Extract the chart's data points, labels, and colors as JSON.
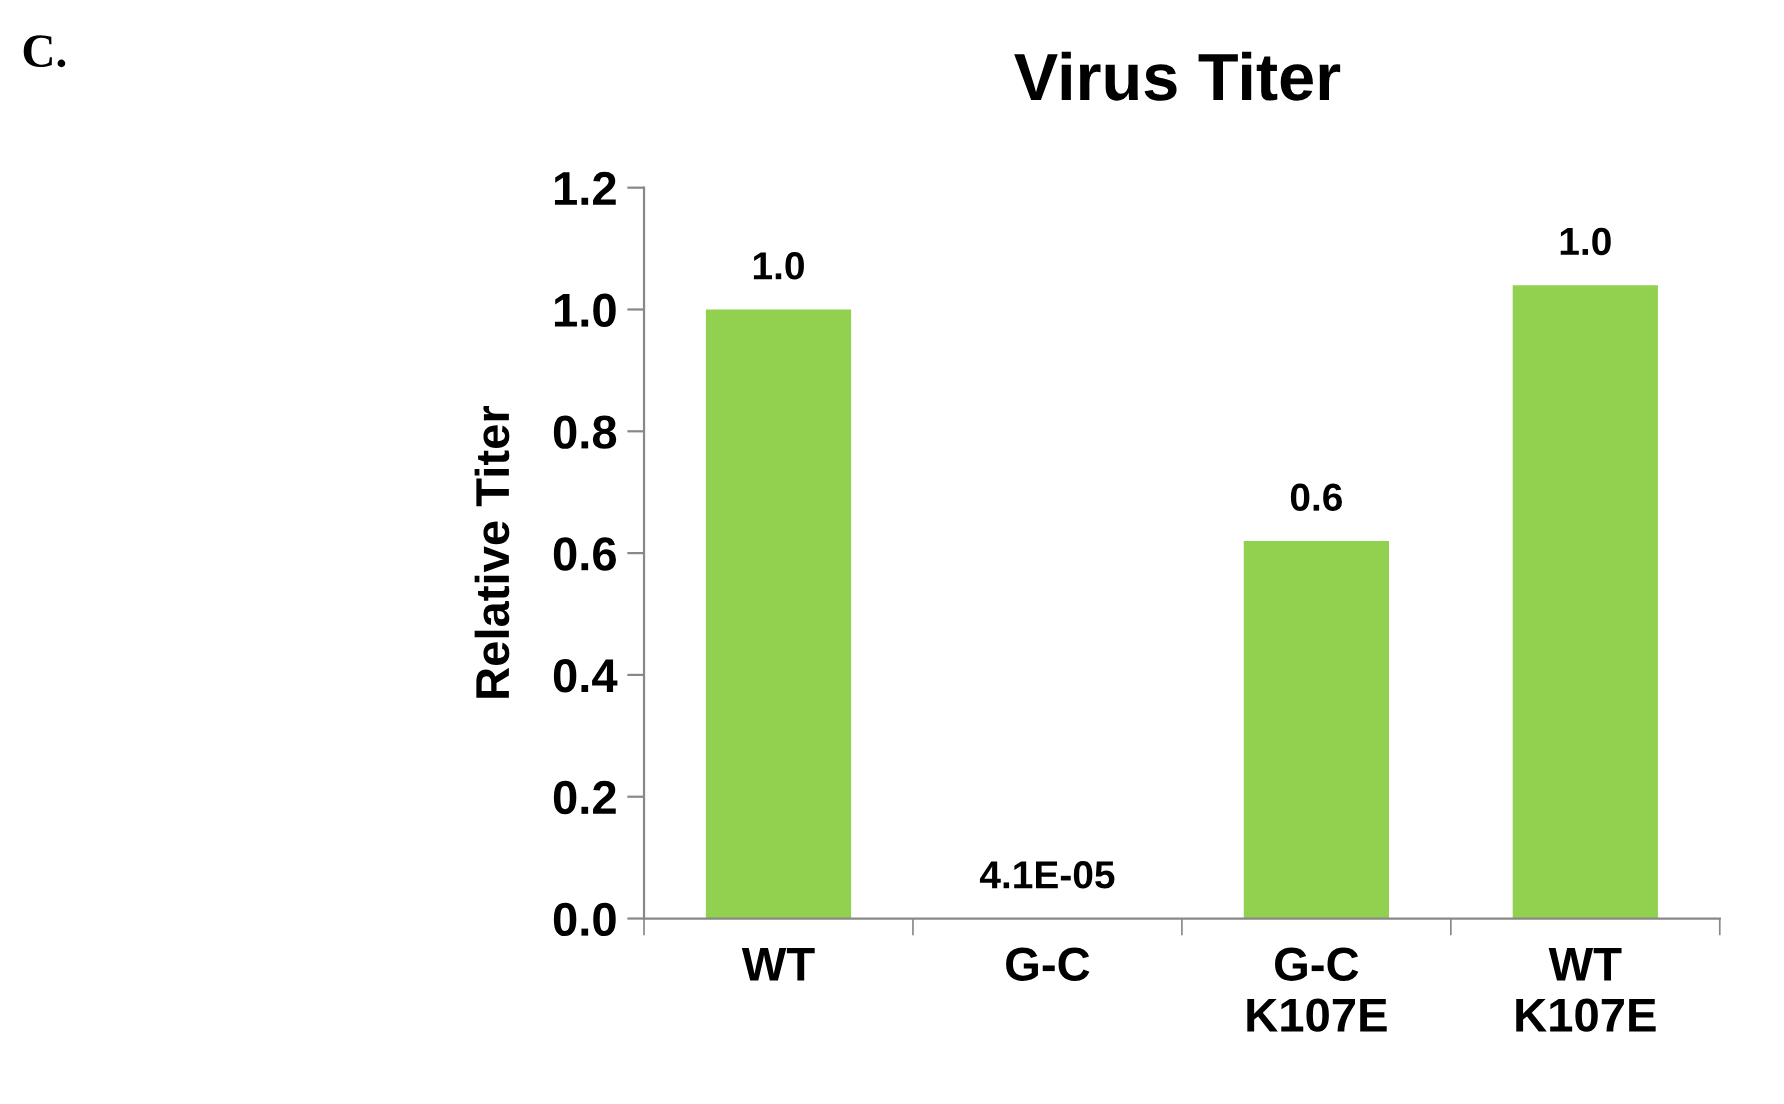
{
  "chart_data": {
    "type": "bar",
    "title": "Virus Titer",
    "ylabel": "Relative Titer",
    "categories": [
      "WT",
      "G-C",
      "G-C\nK107E",
      "WT\nK107E"
    ],
    "values": [
      1.0,
      4.1e-05,
      0.62,
      1.04
    ],
    "value_labels": [
      "1.0",
      "4.1E-05",
      "0.6",
      "1.0"
    ],
    "color": "#92d050",
    "ylim": [
      0,
      1.2
    ],
    "yticks": [
      "0.0",
      "0.2",
      "0.4",
      "0.6",
      "0.8",
      "1.0",
      "1.2"
    ],
    "grid": false,
    "legend": false,
    "annotations": [
      "C."
    ]
  }
}
